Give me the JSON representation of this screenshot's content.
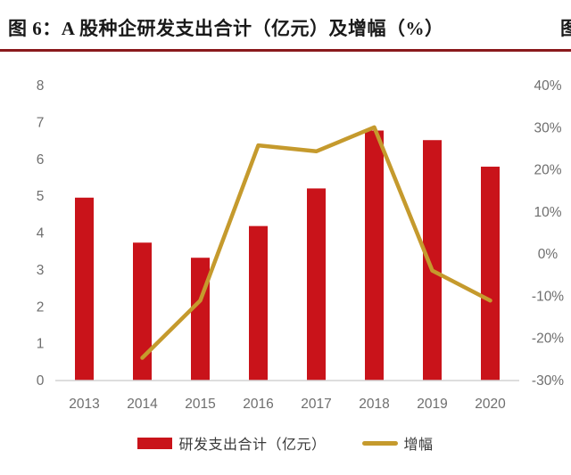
{
  "header": {
    "title": "图 6：A 股种企研发支出合计（亿元）及增幅（%）",
    "partial_next_title": "图",
    "rule_color": "#8a191c"
  },
  "chart_data": {
    "type": "bar",
    "subtype": "bar+line combo, dual axis",
    "title": "A 股种企研发支出合计（亿元）及增幅（%）",
    "categories": [
      "2013",
      "2014",
      "2015",
      "2016",
      "2017",
      "2018",
      "2019",
      "2020"
    ],
    "series": [
      {
        "name": "研发支出合计（亿元）",
        "type": "bar",
        "axis": "left",
        "color": "#c9131a",
        "values": [
          4.96,
          3.74,
          3.33,
          4.19,
          5.21,
          6.78,
          6.52,
          5.8
        ]
      },
      {
        "name": "增幅",
        "type": "line",
        "axis": "right",
        "color": "#c59a2d",
        "values": [
          null,
          -24.6,
          -11.0,
          25.8,
          24.4,
          30.1,
          -3.9,
          -11.0
        ]
      }
    ],
    "left_axis": {
      "min": 0,
      "max": 8,
      "step": 1,
      "ticks": [
        "0",
        "1",
        "2",
        "3",
        "4",
        "5",
        "6",
        "7",
        "8"
      ]
    },
    "right_axis": {
      "min": -30,
      "max": 40,
      "step": 10,
      "unit": "%",
      "ticks": [
        "-30%",
        "-20%",
        "-10%",
        "0%",
        "10%",
        "20%",
        "30%",
        "40%"
      ]
    },
    "grid": false,
    "legend_position": "bottom",
    "axis_line_color": "#d2d2d2",
    "tick_label_color": "#6e6e6e"
  },
  "legend": {
    "items": [
      {
        "label": "研发支出合计（亿元）",
        "marker": "rect",
        "color": "#c9131a"
      },
      {
        "label": "增幅",
        "marker": "line",
        "color": "#c59a2d"
      }
    ]
  }
}
